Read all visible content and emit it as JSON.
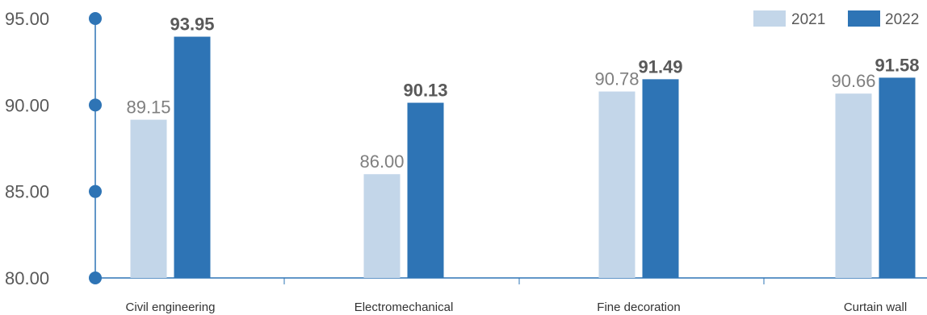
{
  "chart_data": {
    "type": "bar",
    "categories": [
      "Civil engineering",
      "Electromechanical",
      "Fine decoration",
      "Curtain wall"
    ],
    "series": [
      {
        "name": "2021",
        "values": [
          89.15,
          86.0,
          90.78,
          90.66
        ],
        "color": "#c3d6e9"
      },
      {
        "name": "2022",
        "values": [
          93.95,
          90.13,
          91.49,
          91.58
        ],
        "color": "#2e74b5"
      }
    ],
    "data_labels": {
      "2021": [
        "89.15",
        "86.00",
        "90.78",
        "90.66"
      ],
      "2022": [
        "93.95",
        "90.13",
        "91.49",
        "91.58"
      ]
    },
    "y_ticks": [
      {
        "value": 95,
        "label": "95.00"
      },
      {
        "value": 90,
        "label": "90.00"
      },
      {
        "value": 85,
        "label": "85.00"
      },
      {
        "value": 80,
        "label": "80.00"
      }
    ],
    "ylim": [
      80,
      95
    ],
    "legend_position": "top-right",
    "axis_color": "#2e74b5",
    "grid": false
  }
}
